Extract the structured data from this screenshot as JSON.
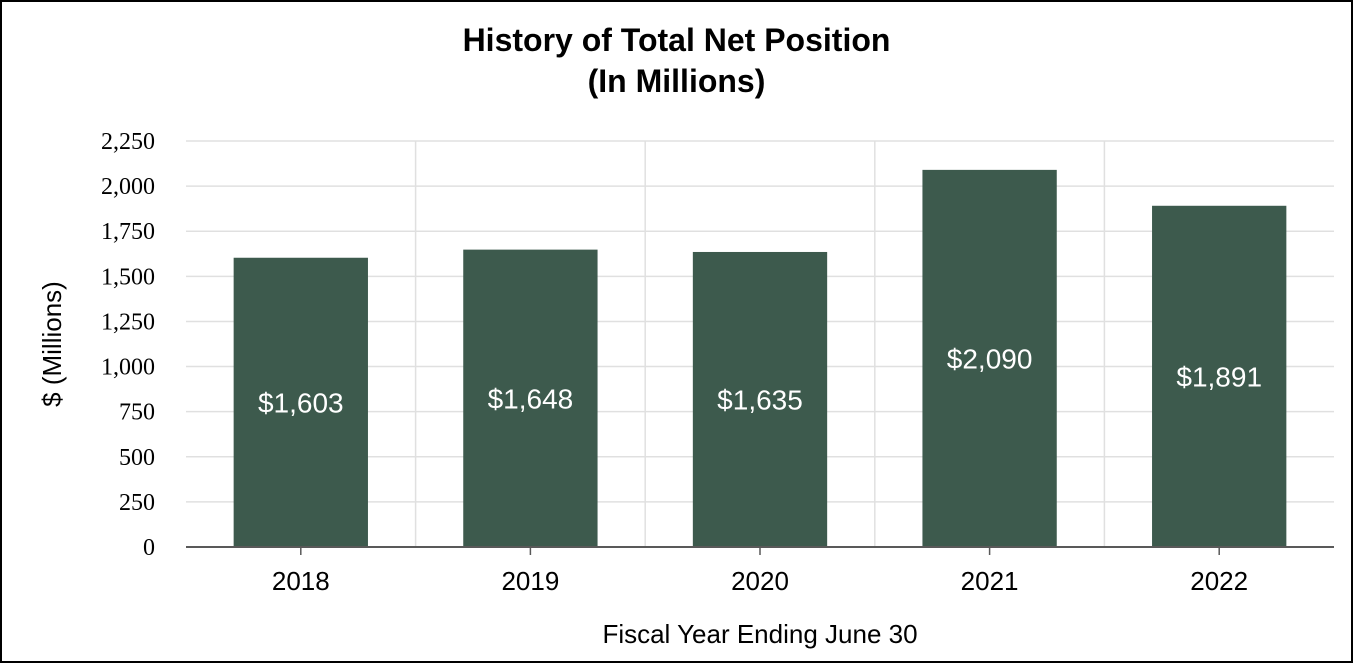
{
  "chart_data": {
    "type": "bar",
    "title_line1": "History of Total Net Position",
    "title_line2": "(In Millions)",
    "xlabel": "Fiscal Year Ending June 30",
    "ylabel": "$ (Millions)",
    "categories": [
      "2018",
      "2019",
      "2020",
      "2021",
      "2022"
    ],
    "values": [
      1603,
      1648,
      1635,
      2090,
      1891
    ],
    "data_labels": [
      "$1,603",
      "$1,648",
      "$1,635",
      "$2,090",
      "$1,891"
    ],
    "ylim": [
      0,
      2250
    ],
    "yticks": [
      0,
      250,
      500,
      750,
      1000,
      1250,
      1500,
      1750,
      2000,
      2250
    ],
    "ytick_labels": [
      "0",
      "250",
      "500",
      "750",
      "1,000",
      "1,250",
      "1,500",
      "1,750",
      "2,000",
      "2,250"
    ],
    "grid": true,
    "legend": "none",
    "colors": {
      "bar": "#3d5a4d",
      "grid": "#e0e0e0",
      "axis": "#595959",
      "label": "#ffffff"
    }
  }
}
